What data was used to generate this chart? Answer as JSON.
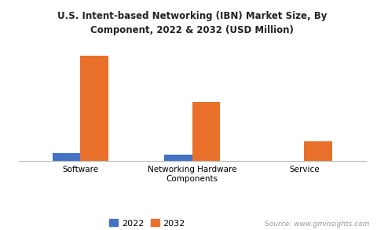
{
  "title": "U.S. Intent-based Networking (IBN) Market Size, By\nComponent, 2022 & 2032 (USD Million)",
  "categories": [
    "Software",
    "Networking Hardware\nComponents",
    "Service"
  ],
  "values_2022": [
    55,
    45,
    0
  ],
  "values_2032": [
    750,
    420,
    140
  ],
  "color_2022": "#4472c4",
  "color_2032": "#e8702a",
  "legend_labels": [
    "2022",
    "2032"
  ],
  "source_text": "Source: www.gminsights.com",
  "ylim": [
    0,
    850
  ],
  "bar_width": 0.25,
  "background_color": "#ffffff"
}
